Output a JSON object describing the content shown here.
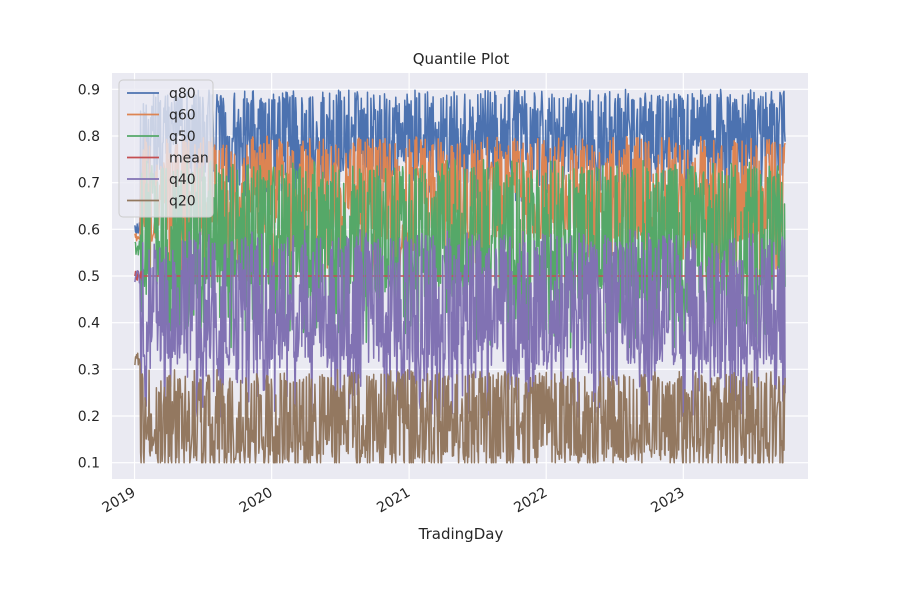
{
  "chart_data": {
    "type": "line",
    "title": "Quantile Plot",
    "xlabel": "TradingDay",
    "ylabel": "",
    "x_range": [
      "2019-01-02",
      "2023-09-29"
    ],
    "x_ticks": [
      "2019",
      "2020",
      "2021",
      "2022",
      "2023"
    ],
    "ylim": [
      0.065,
      0.935
    ],
    "y_ticks": [
      0.1,
      0.2,
      0.3,
      0.4,
      0.5,
      0.6,
      0.7,
      0.8,
      0.9
    ],
    "grid": true,
    "legend_position": "top-left",
    "series": [
      {
        "name": "q80",
        "color": "#4c72b0",
        "typical_range": [
          0.72,
          0.9
        ],
        "start_value": 0.6
      },
      {
        "name": "q60",
        "color": "#dd8452",
        "typical_range": [
          0.57,
          0.8
        ],
        "start_value": 0.58
      },
      {
        "name": "q50",
        "color": "#55a868",
        "typical_range": [
          0.45,
          0.75
        ],
        "start_value": 0.56
      },
      {
        "name": "mean",
        "color": "#c44e52",
        "constant_value": 0.5,
        "start_value": 0.5
      },
      {
        "name": "q40",
        "color": "#8172b3",
        "typical_range": [
          0.3,
          0.6
        ],
        "start_value": 0.5
      },
      {
        "name": "q20",
        "color": "#937860",
        "typical_range": [
          0.1,
          0.3
        ],
        "start_value": 0.32
      }
    ]
  }
}
